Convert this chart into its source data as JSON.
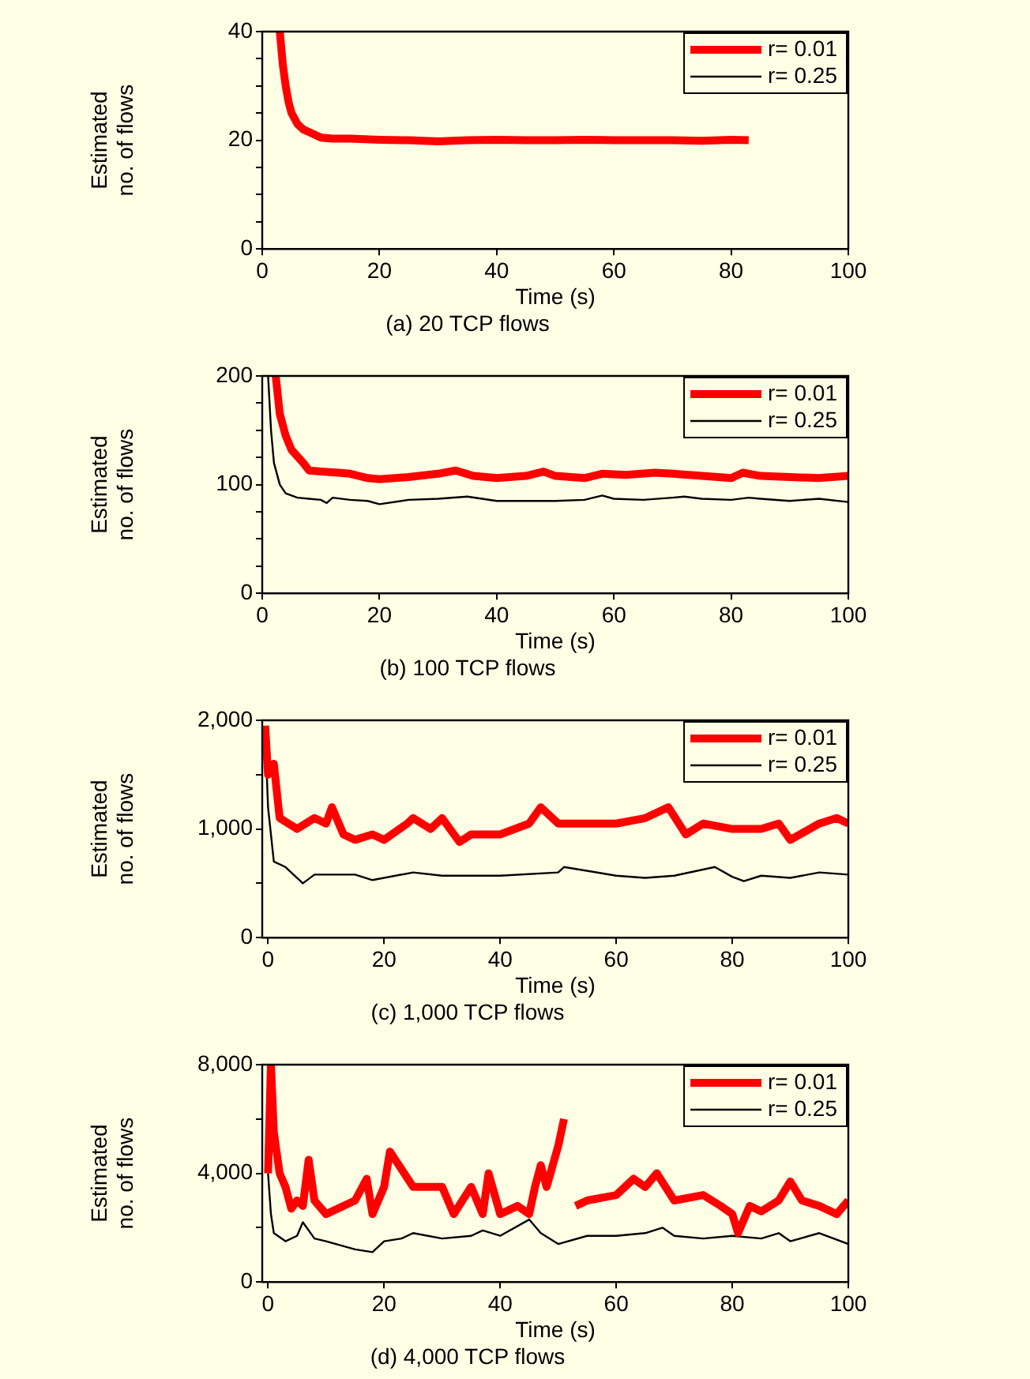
{
  "chart_data": [
    {
      "type": "line",
      "title": "(a) 20 TCP flows",
      "xlabel": "Time (s)",
      "ylabel": "Estimated\nno. of flows",
      "xlim": [
        0,
        100
      ],
      "xticks": [
        0,
        20,
        40,
        60,
        80,
        100
      ],
      "ylim": [
        0,
        40
      ],
      "yticks": [
        0,
        {
          "value": 5,
          "label": null
        },
        {
          "value": 10,
          "label": null
        },
        {
          "value": 15,
          "label": null
        },
        20,
        {
          "value": 25,
          "label": null
        },
        {
          "value": 30,
          "label": null
        },
        {
          "value": 35,
          "label": null
        },
        40
      ],
      "legend": "top right",
      "series": [
        {
          "name": "r= 0.01",
          "color": "#ff0000",
          "x": [
            3,
            3.5,
            4,
            4.5,
            5,
            6,
            7,
            8,
            10,
            12,
            15,
            20,
            25,
            30,
            35,
            40,
            45,
            50,
            55,
            60,
            65,
            70,
            75,
            80,
            83
          ],
          "values": [
            40,
            34,
            30,
            27,
            25,
            23,
            22,
            21.5,
            20.5,
            20.3,
            20.3,
            20.1,
            20,
            19.8,
            20,
            20.1,
            20,
            20,
            20.1,
            20,
            20,
            20,
            19.9,
            20.1,
            20
          ]
        },
        {
          "name": "r= 0.25",
          "color": "#000000"
        }
      ]
    },
    {
      "type": "line",
      "title": "(b) 100 TCP flows",
      "xlabel": "Time (s)",
      "ylabel": "Estimated\nno. of flows",
      "xlim": [
        0,
        100
      ],
      "xticks": [
        0,
        20,
        40,
        60,
        80,
        100
      ],
      "ylim": [
        0,
        200
      ],
      "yticks": [
        0,
        {
          "value": 25,
          "label": null
        },
        {
          "value": 50,
          "label": null
        },
        {
          "value": 75,
          "label": null
        },
        100,
        {
          "value": 125,
          "label": null
        },
        {
          "value": 150,
          "label": null
        },
        {
          "value": 175,
          "label": null
        },
        200
      ],
      "legend": "top right",
      "series": [
        {
          "name": "r= 0.01",
          "color": "#ff0000",
          "x": [
            2.3,
            3,
            4,
            5,
            6,
            7,
            8,
            10,
            13,
            15,
            18,
            20,
            25,
            30,
            33,
            36,
            40,
            45,
            48,
            50,
            55,
            58,
            62,
            67,
            70,
            75,
            80,
            82,
            85,
            90,
            95,
            100
          ],
          "values": [
            200,
            165,
            145,
            132,
            126,
            120,
            113,
            112,
            111,
            110,
            106,
            105,
            107,
            110,
            113,
            108,
            106,
            108,
            112,
            108,
            106,
            110,
            109,
            111,
            110,
            108,
            106,
            111,
            108,
            107,
            106,
            108
          ]
        },
        {
          "name": "r= 0.25",
          "color": "#000000",
          "x": [
            1,
            1.5,
            2,
            3,
            4,
            6,
            8,
            10,
            11,
            12,
            15,
            18,
            20,
            25,
            30,
            35,
            40,
            45,
            50,
            55,
            58,
            60,
            65,
            70,
            72,
            75,
            80,
            83,
            85,
            90,
            95,
            100
          ],
          "values": [
            200,
            150,
            120,
            100,
            92,
            88,
            87,
            86,
            83,
            88,
            86,
            85,
            82,
            86,
            87,
            89,
            85,
            85,
            85,
            86,
            90,
            87,
            86,
            88,
            89,
            87,
            86,
            88,
            87,
            85,
            87,
            84
          ]
        }
      ]
    },
    {
      "type": "line",
      "title": "(c) 1,000 TCP flows",
      "xlabel": "Time (s)",
      "ylabel": "Estimated\nno. of flows",
      "xlim": [
        -1,
        100
      ],
      "xticks": [
        0,
        20,
        40,
        60,
        80,
        100
      ],
      "ylim": [
        0,
        2000
      ],
      "yticks": [
        0,
        {
          "value": 500,
          "label": null
        },
        {
          "value": 1000,
          "label": "1,000"
        },
        {
          "value": 1500,
          "label": null
        },
        {
          "value": 2000,
          "label": "2,000"
        }
      ],
      "legend": "top right",
      "series": [
        {
          "name": "r= 0.01",
          "color": "#ff0000",
          "x": [
            -0.5,
            0,
            1,
            2,
            5,
            8,
            10,
            11,
            13,
            15,
            18,
            20,
            24,
            25,
            28,
            30,
            33,
            35,
            40,
            45,
            47,
            50,
            55,
            60,
            65,
            69,
            72,
            75,
            80,
            85,
            88,
            90,
            95,
            98,
            100
          ],
          "values": [
            1950,
            1500,
            1600,
            1100,
            1000,
            1100,
            1050,
            1200,
            950,
            900,
            950,
            900,
            1050,
            1100,
            1000,
            1100,
            880,
            950,
            950,
            1050,
            1200,
            1050,
            1050,
            1050,
            1100,
            1200,
            950,
            1050,
            1000,
            1000,
            1050,
            900,
            1050,
            1100,
            1050
          ]
        },
        {
          "name": "r= 0.25",
          "color": "#000000",
          "x": [
            -0.5,
            0,
            1,
            3,
            6,
            8,
            10,
            15,
            18,
            25,
            30,
            40,
            50,
            51,
            60,
            65,
            70,
            77,
            80,
            82,
            85,
            90,
            95,
            100
          ],
          "values": [
            1900,
            1200,
            700,
            650,
            500,
            580,
            580,
            580,
            530,
            600,
            570,
            570,
            600,
            650,
            570,
            550,
            570,
            650,
            560,
            520,
            570,
            550,
            600,
            580
          ]
        }
      ]
    },
    {
      "type": "line",
      "title": "(d) 4,000 TCP flows",
      "xlabel": "Time (s)",
      "ylabel": "Estimated\nno. of flows",
      "xlim": [
        -1,
        100
      ],
      "xticks": [
        0,
        20,
        40,
        60,
        80,
        100
      ],
      "ylim": [
        0,
        8000
      ],
      "yticks": [
        0,
        {
          "value": 2000,
          "label": null
        },
        {
          "value": 4000,
          "label": "4,000"
        },
        {
          "value": 6000,
          "label": null
        },
        {
          "value": 8000,
          "label": "8,000"
        }
      ],
      "legend": "top right",
      "series": [
        {
          "name": "r= 0.01",
          "color": "#ff0000",
          "x": [
            0,
            0.5,
            1,
            2,
            3,
            4,
            5,
            6,
            7,
            8,
            10,
            15,
            17,
            18,
            20,
            21,
            25,
            30,
            32,
            35,
            37,
            38,
            40,
            43,
            45,
            46,
            47,
            48,
            50,
            51,
            52,
            53,
            55,
            60,
            63,
            65,
            67,
            70,
            75,
            78,
            80,
            81,
            83,
            85,
            88,
            90,
            92,
            95,
            98,
            100
          ],
          "values": [
            4000,
            8000,
            5500,
            4000,
            3500,
            2700,
            3000,
            2800,
            4500,
            3000,
            2500,
            3000,
            3800,
            2500,
            3500,
            4800,
            3500,
            3500,
            2500,
            3500,
            2500,
            4000,
            2500,
            2800,
            2500,
            3500,
            4300,
            3500,
            5000,
            6000,
            null,
            2800,
            3000,
            3200,
            3800,
            3500,
            4000,
            3000,
            3200,
            2800,
            2500,
            1800,
            2800,
            2600,
            3000,
            3700,
            3000,
            2800,
            2500,
            3000
          ]
        },
        {
          "name": "r= 0.25",
          "color": "#000000",
          "x": [
            0,
            0.5,
            1,
            3,
            5,
            6,
            8,
            10,
            15,
            18,
            20,
            23,
            25,
            30,
            35,
            37,
            40,
            45,
            47,
            50,
            55,
            60,
            65,
            68,
            70,
            75,
            80,
            85,
            88,
            90,
            95,
            100
          ],
          "values": [
            4000,
            2500,
            1800,
            1500,
            1700,
            2200,
            1600,
            1500,
            1200,
            1100,
            1500,
            1600,
            1800,
            1600,
            1700,
            1900,
            1700,
            2300,
            1800,
            1400,
            1700,
            1700,
            1800,
            2000,
            1700,
            1600,
            1700,
            1600,
            1800,
            1500,
            1800,
            1400
          ]
        }
      ]
    }
  ]
}
